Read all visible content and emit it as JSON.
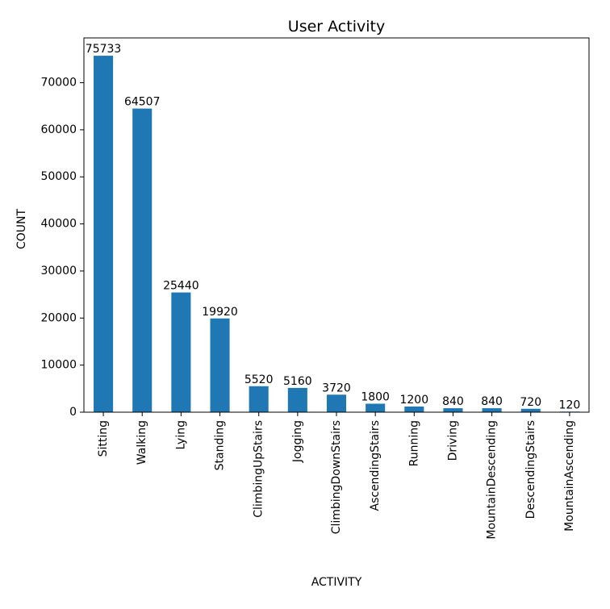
{
  "chart_data": {
    "type": "bar",
    "title": "User Activity",
    "xlabel": "ACTIVITY",
    "ylabel": "COUNT",
    "categories": [
      "Sitting",
      "Walking",
      "Lying",
      "Standing",
      "ClimbingUpStairs",
      "Jogging",
      "ClimbingDownStairs",
      "AscendingStairs",
      "Running",
      "Driving",
      "MountainDescending",
      "DescendingStairs",
      "MountainAscending"
    ],
    "values": [
      75733,
      64507,
      25440,
      19920,
      5520,
      5160,
      3720,
      1800,
      1200,
      840,
      840,
      720,
      120
    ],
    "data_labels": [
      "75733",
      "64507",
      "25440",
      "19920",
      "5520",
      "5160",
      "3720",
      "1800",
      "1200",
      "840",
      "840",
      "720",
      "120"
    ],
    "yticks": [
      0,
      10000,
      20000,
      30000,
      40000,
      50000,
      60000,
      70000
    ],
    "ytick_labels": [
      "0",
      "10000",
      "20000",
      "30000",
      "40000",
      "50000",
      "60000",
      "70000"
    ],
    "ylim": [
      0,
      79520
    ],
    "bar_color": "#1f77b4",
    "grid": false,
    "legend": "none"
  }
}
